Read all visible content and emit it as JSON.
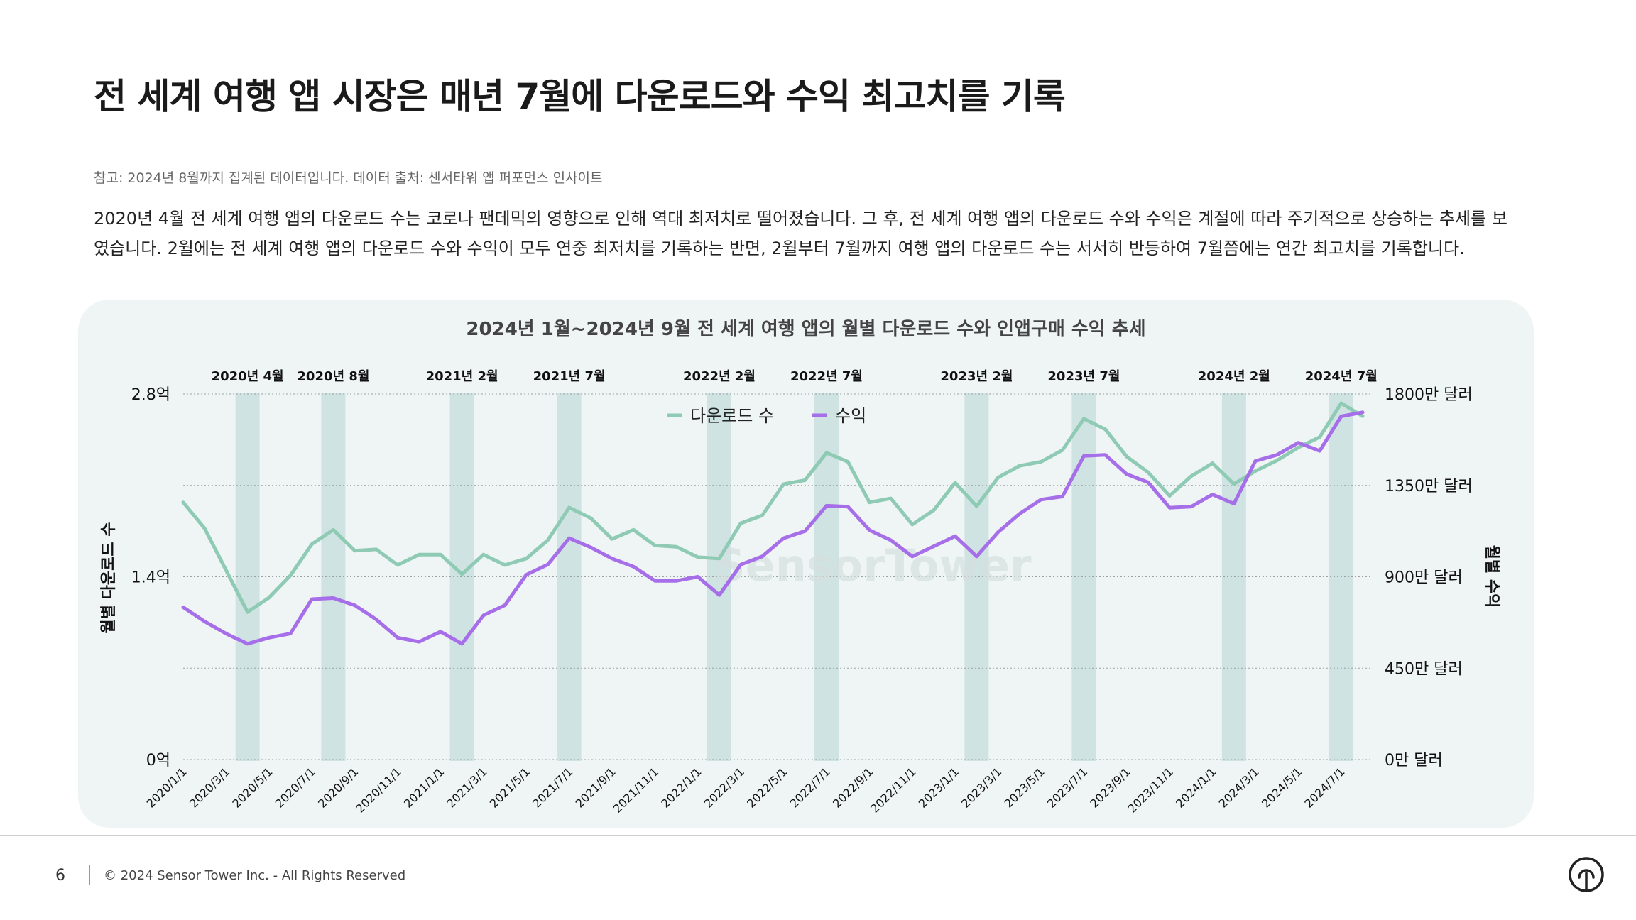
{
  "page": {
    "title": "전 세계 여행 앱 시장은 매년 7월에 다운로드와 수익 최고치를 기록",
    "note": "참고: 2024년 8월까지 집계된 데이터입니다. 데이터 출처: 센서타워 앱 퍼포먼스 인사이트",
    "body": "2020년 4월 전 세계 여행 앱의 다운로드 수는 코로나 팬데믹의 영향으로 인해 역대 최저치로 떨어졌습니다. 그 후, 전 세계 여행 앱의 다운로드 수와 수익은 계절에 따라 주기적으로 상승하는 추세를 보였습니다. 2월에는 전 세계 여행 앱의 다운로드 수와 수익이 모두 연중 최저치를 기록하는 반면, 2월부터 7월까지 여행 앱의 다운로드 수는 서서히 반등하여 7월쯤에는 연간 최고치를 기록합니다.",
    "watermark": "SensorTower"
  },
  "footer": {
    "page_number": "6",
    "copyright": "© 2024 Sensor Tower Inc. - All Rights Reserved",
    "logo_icon": "sensor-tower-logo-icon"
  },
  "colors": {
    "downloads": "#8fcbb4",
    "revenue": "#a66ee8",
    "highlight_band": "#cfe3e2",
    "panel_bg": "#eef5f4"
  },
  "chart_data": {
    "type": "line",
    "title": "2024년 1월~2024년 9월 전 세계 여행 앱의 월별 다운로드 수와 인앱구매 수익 추세",
    "ylabel_left": "월별 다운로드 수",
    "ylabel_right": "월별 수익",
    "yticks_left": [
      "0억",
      "1.4억",
      "2.8억"
    ],
    "ylim_left": [
      0,
      2.8
    ],
    "yticks_right": [
      "0만 달러",
      "450만 달러",
      "900만 달러",
      "1350만 달러",
      "1800만 달러"
    ],
    "ylim_right": [
      0,
      1800
    ],
    "x_tick_labels": [
      "2020/1/1",
      "2020/3/1",
      "2020/5/1",
      "2020/7/1",
      "2020/9/1",
      "2020/11/1",
      "2021/1/1",
      "2021/3/1",
      "2021/5/1",
      "2021/7/1",
      "2021/9/1",
      "2021/11/1",
      "2022/1/1",
      "2022/3/1",
      "2022/5/1",
      "2022/7/1",
      "2022/9/1",
      "2022/11/1",
      "2023/1/1",
      "2023/3/1",
      "2023/5/1",
      "2023/7/1",
      "2023/9/1",
      "2023/11/1",
      "2024/1/1",
      "2024/3/1",
      "2024/5/1",
      "2024/7/1"
    ],
    "highlights": [
      {
        "label": "2020년 4월",
        "index": 3
      },
      {
        "label": "2020년 8월",
        "index": 7
      },
      {
        "label": "2021년 2월",
        "index": 13
      },
      {
        "label": "2021년 7월",
        "index": 18
      },
      {
        "label": "2022년 2월",
        "index": 25
      },
      {
        "label": "2022년 7월",
        "index": 30
      },
      {
        "label": "2023년 2월",
        "index": 37
      },
      {
        "label": "2023년 7월",
        "index": 42
      },
      {
        "label": "2024년 2월",
        "index": 49
      },
      {
        "label": "2024년 7월",
        "index": 54
      }
    ],
    "series": [
      {
        "name": "다운로드 수",
        "axis": "left",
        "unit": "억",
        "values": [
          1.97,
          1.77,
          1.45,
          1.13,
          1.24,
          1.41,
          1.65,
          1.76,
          1.6,
          1.61,
          1.49,
          1.57,
          1.57,
          1.42,
          1.57,
          1.49,
          1.54,
          1.68,
          1.93,
          1.85,
          1.69,
          1.76,
          1.64,
          1.63,
          1.55,
          1.54,
          1.81,
          1.87,
          2.11,
          2.14,
          2.35,
          2.28,
          1.97,
          2.0,
          1.8,
          1.91,
          2.12,
          1.94,
          2.16,
          2.25,
          2.28,
          2.37,
          2.61,
          2.53,
          2.32,
          2.2,
          2.02,
          2.17,
          2.27,
          2.11,
          2.21,
          2.29,
          2.39,
          2.47,
          2.73,
          2.63
        ]
      },
      {
        "name": "수익",
        "axis": "right",
        "unit": "만 달러",
        "values": [
          750,
          680,
          620,
          570,
          600,
          620,
          790,
          795,
          760,
          690,
          600,
          580,
          630,
          570,
          710,
          760,
          910,
          960,
          1090,
          1045,
          990,
          950,
          880,
          880,
          900,
          810,
          960,
          1000,
          1090,
          1125,
          1250,
          1245,
          1130,
          1080,
          1000,
          1050,
          1100,
          1000,
          1120,
          1210,
          1280,
          1295,
          1495,
          1500,
          1405,
          1365,
          1240,
          1245,
          1305,
          1260,
          1470,
          1500,
          1560,
          1520,
          1690,
          1710
        ]
      }
    ]
  }
}
